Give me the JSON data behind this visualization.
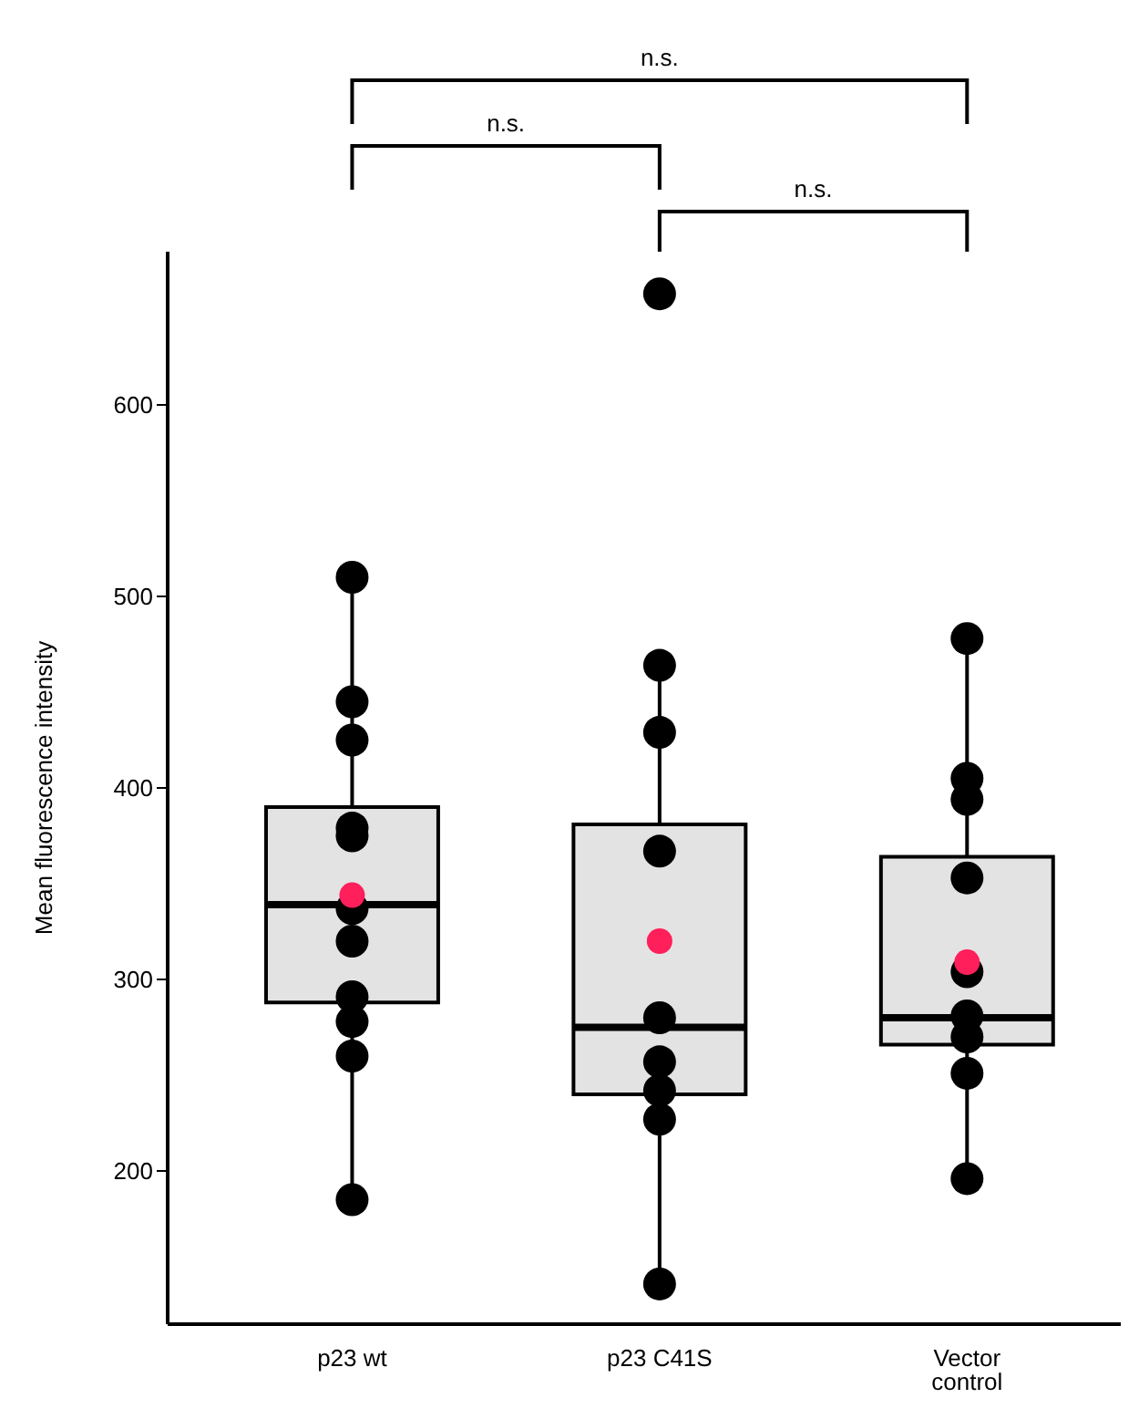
{
  "chart_data": {
    "type": "box",
    "ylabel": "Mean fluorescence intensity",
    "categories": [
      "p23 wt",
      "p23 C41S",
      "Vector control"
    ],
    "ylim": [
      120,
      680
    ],
    "yticks": [
      200,
      300,
      400,
      500,
      600
    ],
    "annotations": [
      "n.s.",
      "n.s.",
      "n.s."
    ],
    "series": [
      {
        "type": "box",
        "color": "#e3e3e3",
        "boxes": [
          {
            "low": 185,
            "q1": 288,
            "median": 339,
            "q3": 390,
            "high": 510,
            "mean": 344
          },
          {
            "low": 141,
            "q1": 240,
            "median": 275,
            "q3": 381,
            "high": 464,
            "mean": 320,
            "outliers": [
              658
            ]
          },
          {
            "low": 196,
            "q1": 266,
            "median": 280,
            "q3": 364,
            "high": 478,
            "mean": 309
          }
        ]
      },
      {
        "type": "scatter",
        "color": "#000000",
        "marker": "circle",
        "x": [
          "p23 wt",
          "p23 wt",
          "p23 wt",
          "p23 wt",
          "p23 wt",
          "p23 wt",
          "p23 wt",
          "p23 wt",
          "p23 wt",
          "p23 wt",
          "p23 wt",
          "p23 C41S",
          "p23 C41S",
          "p23 C41S",
          "p23 C41S",
          "p23 C41S",
          "p23 C41S",
          "p23 C41S",
          "p23 C41S",
          "Vector control",
          "Vector control",
          "Vector control",
          "Vector control",
          "Vector control",
          "Vector control",
          "Vector control",
          "Vector control",
          "Vector control"
        ],
        "values": [
          510,
          445,
          425,
          379,
          375,
          337,
          320,
          291,
          278,
          260,
          185,
          464,
          429,
          367,
          280,
          257,
          242,
          227,
          141,
          478,
          405,
          394,
          353,
          304,
          281,
          270,
          251,
          196
        ]
      }
    ]
  }
}
